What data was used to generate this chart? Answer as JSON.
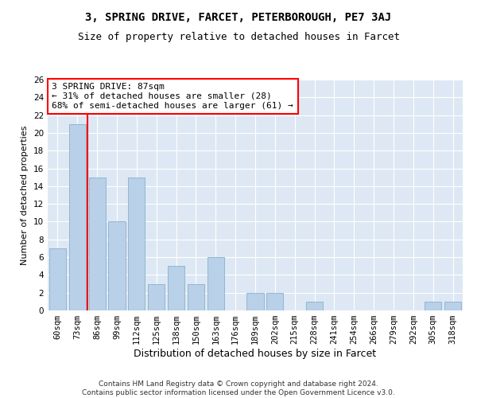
{
  "title1": "3, SPRING DRIVE, FARCET, PETERBOROUGH, PE7 3AJ",
  "title2": "Size of property relative to detached houses in Farcet",
  "xlabel": "Distribution of detached houses by size in Farcet",
  "ylabel": "Number of detached properties",
  "categories": [
    "60sqm",
    "73sqm",
    "86sqm",
    "99sqm",
    "112sqm",
    "125sqm",
    "138sqm",
    "150sqm",
    "163sqm",
    "176sqm",
    "189sqm",
    "202sqm",
    "215sqm",
    "228sqm",
    "241sqm",
    "254sqm",
    "266sqm",
    "279sqm",
    "292sqm",
    "305sqm",
    "318sqm"
  ],
  "values": [
    7,
    21,
    15,
    10,
    15,
    3,
    5,
    3,
    6,
    0,
    2,
    2,
    0,
    1,
    0,
    0,
    0,
    0,
    0,
    1,
    1
  ],
  "bar_color": "#b8d0e8",
  "bar_edge_color": "#8ab0cc",
  "vline_color": "red",
  "annotation_text": "3 SPRING DRIVE: 87sqm\n← 31% of detached houses are smaller (28)\n68% of semi-detached houses are larger (61) →",
  "annotation_box_color": "white",
  "annotation_box_edge_color": "red",
  "ylim": [
    0,
    26
  ],
  "yticks": [
    0,
    2,
    4,
    6,
    8,
    10,
    12,
    14,
    16,
    18,
    20,
    22,
    24,
    26
  ],
  "background_color": "#dde8f4",
  "footer_text": "Contains HM Land Registry data © Crown copyright and database right 2024.\nContains public sector information licensed under the Open Government Licence v3.0.",
  "title1_fontsize": 10,
  "title2_fontsize": 9,
  "xlabel_fontsize": 9,
  "ylabel_fontsize": 8,
  "tick_fontsize": 7.5,
  "annotation_fontsize": 8,
  "footer_fontsize": 6.5
}
